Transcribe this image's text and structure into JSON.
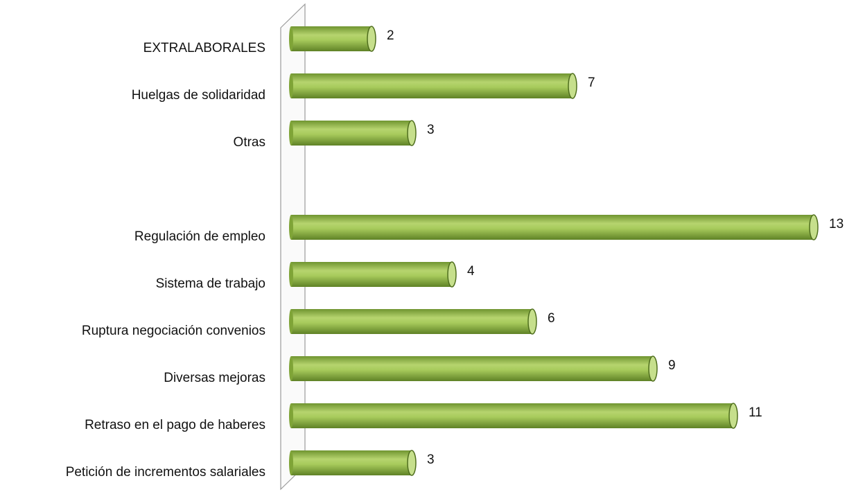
{
  "chart_data": {
    "type": "bar",
    "orientation": "horizontal",
    "categories": [
      "EXTRALABORALES",
      "Huelgas de solidaridad",
      "Otras",
      null,
      "Regulación de empleo",
      "Sistema de trabajo",
      "Ruptura negociación convenios",
      "Diversas mejoras",
      "Retraso en el pago de haberes",
      "Petición de incrementos salariales"
    ],
    "values": [
      2,
      7,
      3,
      null,
      13,
      4,
      6,
      9,
      11,
      3
    ],
    "color": "#8db33f"
  }
}
